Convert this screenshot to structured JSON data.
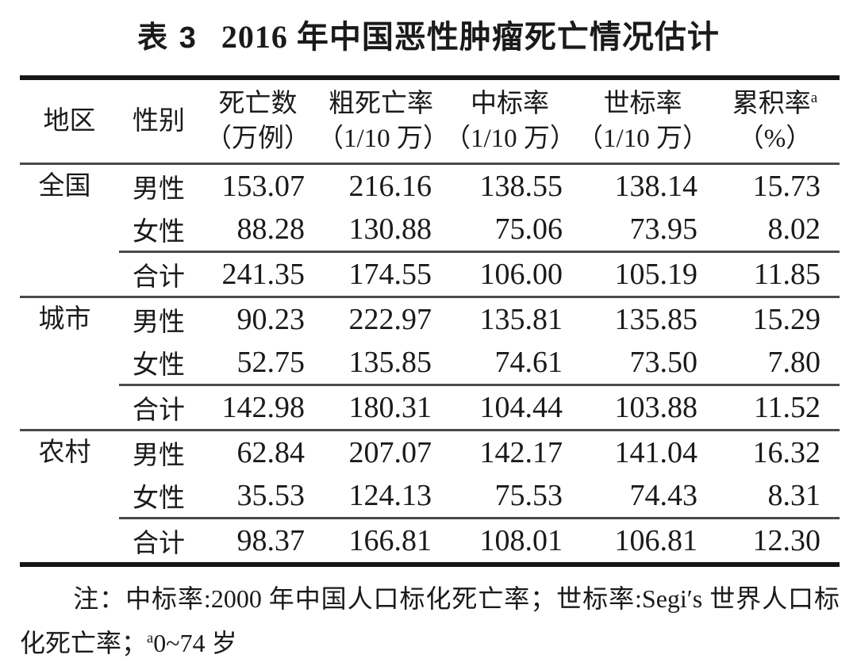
{
  "title": {
    "label": "表 3",
    "text": "2016 年中国恶性肿瘤死亡情况估计"
  },
  "table": {
    "columns": [
      {
        "label": "地区"
      },
      {
        "label": "性别"
      },
      {
        "label": "死亡数",
        "unit": "（万例）"
      },
      {
        "label": "粗死亡率",
        "unit": "（1/10 万）"
      },
      {
        "label": "中标率",
        "unit": "（1/10 万）"
      },
      {
        "label": "世标率",
        "unit": "（1/10 万）"
      },
      {
        "label": "累积率",
        "sup": "a",
        "unit": "（%）"
      }
    ],
    "groups": [
      {
        "region": "全国",
        "rows": [
          {
            "sex": "男性",
            "values": [
              "153.07",
              "216.16",
              "138.55",
              "138.14",
              "15.73"
            ]
          },
          {
            "sex": "女性",
            "values": [
              "88.28",
              "130.88",
              "75.06",
              "73.95",
              "8.02"
            ]
          },
          {
            "sex": "合计",
            "values": [
              "241.35",
              "174.55",
              "106.00",
              "105.19",
              "11.85"
            ]
          }
        ]
      },
      {
        "region": "城市",
        "rows": [
          {
            "sex": "男性",
            "values": [
              "90.23",
              "222.97",
              "135.81",
              "135.85",
              "15.29"
            ]
          },
          {
            "sex": "女性",
            "values": [
              "52.75",
              "135.85",
              "74.61",
              "73.50",
              "7.80"
            ]
          },
          {
            "sex": "合计",
            "values": [
              "142.98",
              "180.31",
              "104.44",
              "103.88",
              "11.52"
            ]
          }
        ]
      },
      {
        "region": "农村",
        "rows": [
          {
            "sex": "男性",
            "values": [
              "62.84",
              "207.07",
              "142.17",
              "141.04",
              "16.32"
            ]
          },
          {
            "sex": "女性",
            "values": [
              "35.53",
              "124.13",
              "75.53",
              "74.43",
              "8.31"
            ]
          },
          {
            "sex": "合计",
            "values": [
              "98.37",
              "166.81",
              "108.01",
              "106.81",
              "12.30"
            ]
          }
        ]
      }
    ]
  },
  "footnote": {
    "lead": "注：",
    "body": "中标率:2000 年中国人口标化死亡率；世标率:Segi′s 世界人口标化死亡率；",
    "sup": "a",
    "tail": "0~74 岁"
  },
  "colors": {
    "text": "#1a1a1a",
    "rule_thick": "#161616",
    "rule_thin": "#4a4a4a",
    "background": "#ffffff"
  }
}
